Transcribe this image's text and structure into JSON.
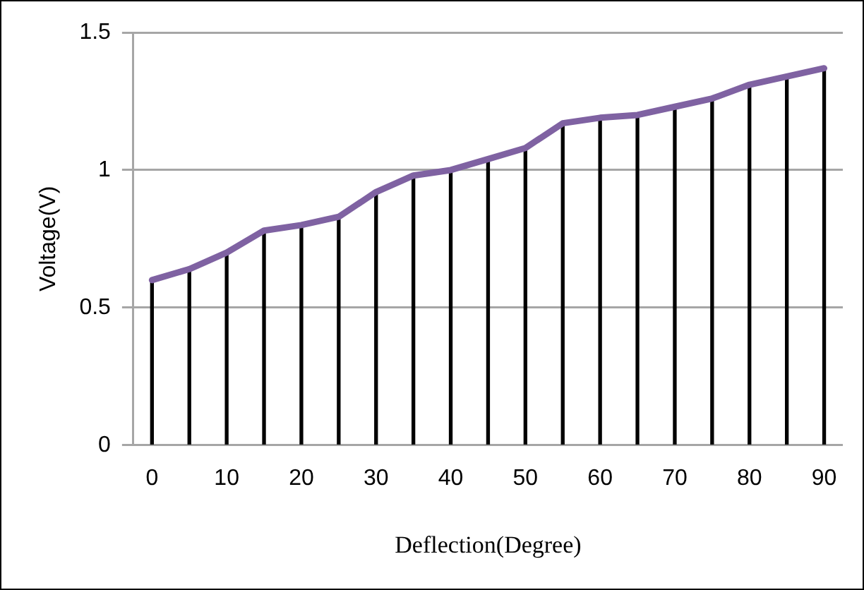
{
  "chart_data": {
    "type": "line",
    "categories": [
      "0",
      null,
      "10",
      null,
      "20",
      null,
      "30",
      null,
      "40",
      null,
      "50",
      null,
      "60",
      null,
      "70",
      null,
      "80",
      null,
      "90"
    ],
    "series": [
      {
        "type": "bar",
        "color": "#000000",
        "values": [
          0.6,
          0.64,
          0.7,
          0.78,
          0.8,
          0.83,
          0.92,
          0.98,
          1.0,
          1.04,
          1.08,
          1.17,
          1.19,
          1.2,
          1.23,
          1.26,
          1.31,
          1.34,
          1.37
        ]
      },
      {
        "color": "#7f62a2",
        "values": [
          0.6,
          0.64,
          0.7,
          0.78,
          0.8,
          0.83,
          0.92,
          0.98,
          1.0,
          1.04,
          1.08,
          1.17,
          1.19,
          1.2,
          1.23,
          1.26,
          1.31,
          1.34,
          1.37
        ]
      }
    ],
    "ylim": [
      0,
      1.5
    ],
    "yticks": [
      0,
      0.5,
      1,
      1.5
    ],
    "grid": "y",
    "legend": false,
    "marker": "none",
    "line_style": "solid",
    "xlabel": "Deflection(Degree)",
    "ylabel": "Voltage(V)"
  }
}
